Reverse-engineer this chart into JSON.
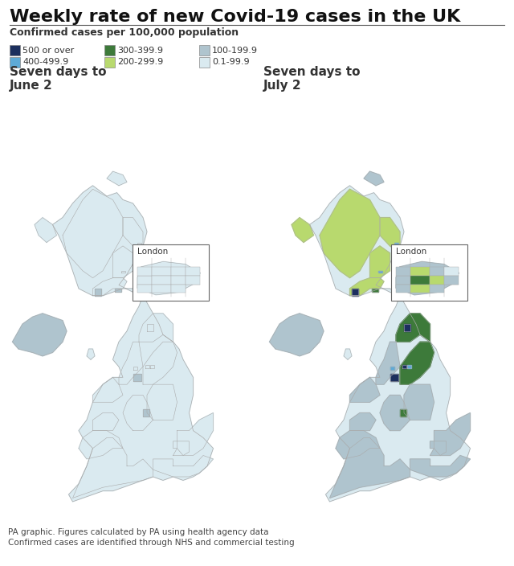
{
  "title": "Weekly rate of new Covid-19 cases in the UK",
  "subtitle": "Confirmed cases per 100,000 population",
  "subtitle2_left": "Seven days to\nJune 2",
  "subtitle2_right": "Seven days to\nJuly 2",
  "footer1": "PA graphic. Figures calculated by PA using health agency data",
  "footer2": "Confirmed cases are identified through NHS and commercial testing",
  "legend_items": [
    {
      "label": "500 or over",
      "color": "#1c2f5e"
    },
    {
      "label": "400-499.9",
      "color": "#5eaad7"
    },
    {
      "label": "300-399.9",
      "color": "#3d7a3a"
    },
    {
      "label": "200-299.9",
      "color": "#b8d96e"
    },
    {
      "label": "100-199.9",
      "color": "#afc4ce"
    },
    {
      "label": "0.1-99.9",
      "color": "#daeaf0"
    }
  ],
  "bg_color": "#ffffff",
  "border_color": "#999999",
  "title_color": "#111111",
  "text_color": "#333333",
  "london_box_color": "#666666",
  "june_region_colors": {
    "scotland_general": "#daeaf0",
    "glasgow_city": "#afc4ce",
    "edinburgh": "#afc4ce",
    "dundee": "#afc4ce",
    "nw_england": "#afc4ce",
    "manchester": "#1c2f5e",
    "salford": "#3d7a3a",
    "london_general": "#daeaf0",
    "midlands": "#daeaf0",
    "yorkshire": "#daeaf0",
    "wales": "#daeaf0",
    "sw_england": "#daeaf0",
    "se_england": "#daeaf0",
    "east_england": "#daeaf0",
    "north_east": "#daeaf0"
  },
  "july_region_colors": {
    "scotland_general": "#b8d96e",
    "glasgow_city": "#1c2f5e",
    "aberdeen": "#5eaad7",
    "edinburgh": "#3d7a3a",
    "dundee": "#5eaad7",
    "nw_england": "#afc4ce",
    "manchester": "#1c2f5e",
    "salford": "#3d7a3a",
    "blackburn": "#5eaad7",
    "burnley": "#5eaad7",
    "ne_england": "#1c2f5e",
    "sunderland": "#5eaad7",
    "yorkshire": "#3d7a3a",
    "bradford": "#1c2f5e",
    "leeds": "#5eaad7",
    "midlands": "#afc4ce",
    "birmingham": "#3d7a3a",
    "wales": "#afc4ce",
    "sw_england": "#afc4ce",
    "se_england": "#afc4ce",
    "east_england": "#afc4ce",
    "london_general": "#afc4ce"
  }
}
